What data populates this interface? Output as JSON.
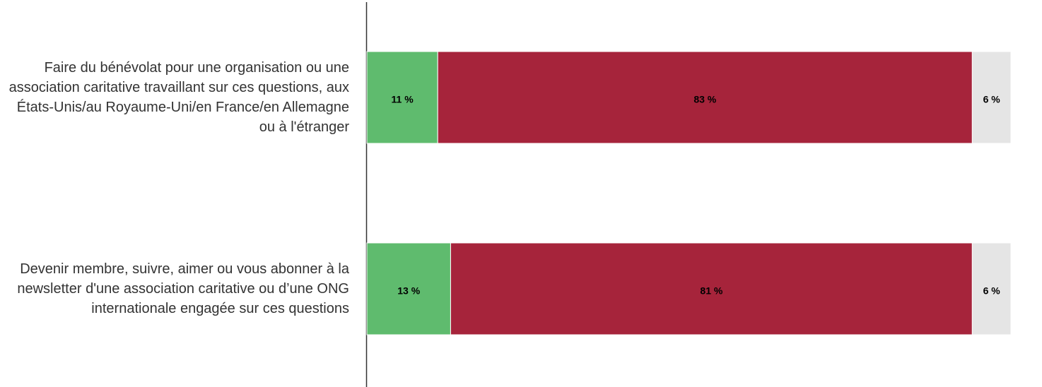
{
  "chart_data": {
    "type": "stacked-hbar",
    "categories": [
      "Faire du bénévolat pour une organisation ou une association caritative travaillant sur ces questions, aux États-Unis/au Royaume-Uni/en France/en Allemagne ou à l'étranger",
      "Devenir membre, suivre, aimer ou vous abonner à la newsletter d'une association caritative ou d’une ONG internationale engagée sur ces questions"
    ],
    "series": [
      {
        "color": "#5fbb6e",
        "values": [
          11,
          13
        ],
        "value_labels": [
          "11 %",
          "13 %"
        ]
      },
      {
        "color": "#a6243b",
        "values": [
          83,
          81
        ],
        "value_labels": [
          "83 %",
          "81 %"
        ]
      },
      {
        "color": "#e5e5e5",
        "values": [
          6,
          6
        ],
        "value_labels": [
          "6 %",
          "6 %"
        ]
      }
    ],
    "xlim": [
      0,
      100
    ]
  }
}
